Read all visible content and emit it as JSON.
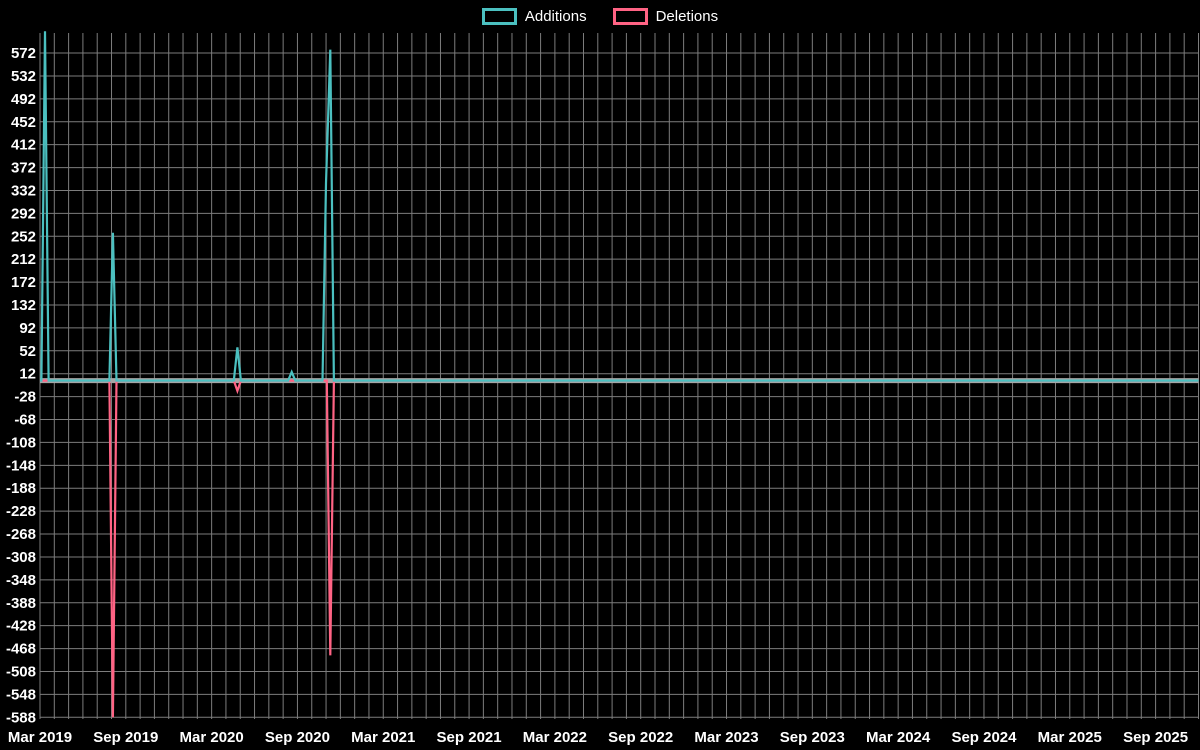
{
  "page": {
    "background": "#000000"
  },
  "legend": {
    "items": [
      {
        "label": "Additions",
        "color": "#4bc0c0"
      },
      {
        "label": "Deletions",
        "color": "#ff6384"
      }
    ]
  },
  "chart_data": {
    "type": "line",
    "legend_position": "top-center",
    "background": "#000000",
    "grid": true,
    "grid_color": "#7d7d7d",
    "zero_line_color": "#a6a6a6",
    "baseline_value": 0,
    "x_axis": {
      "start": "Mar 2019",
      "months_shown": 81,
      "minor_grid": "monthly",
      "tick_interval_months": 6,
      "tick_labels": [
        "Mar 2019",
        "Sep 2019",
        "Mar 2020",
        "Sep 2020",
        "Mar 2021",
        "Sep 2021",
        "Mar 2022",
        "Sep 2022",
        "Mar 2023",
        "Sep 2023",
        "Mar 2024",
        "Sep 2024",
        "Mar 2025",
        "Sep 2025"
      ]
    },
    "y_axis": {
      "ticks": [
        572,
        532,
        492,
        452,
        412,
        372,
        332,
        292,
        252,
        212,
        172,
        132,
        92,
        52,
        12,
        -28,
        -68,
        -108,
        -148,
        -188,
        -228,
        -268,
        -308,
        -348,
        -388,
        -428,
        -468,
        -508,
        -548,
        -588
      ],
      "range": [
        -591,
        607
      ]
    },
    "series": [
      {
        "name": "Additions",
        "color": "#4bc0c0",
        "baseline": 0,
        "spikes": [
          {
            "date": "late Mar 2019",
            "month_index": 0.35,
            "value": 610
          },
          {
            "date": "early Aug 2019",
            "month_index": 5.1,
            "value": 258
          },
          {
            "date": "late Apr 2020",
            "month_index": 13.8,
            "value": 58
          },
          {
            "date": "late Aug 2020",
            "month_index": 17.6,
            "value": 15
          },
          {
            "date": "early Nov 2020",
            "month_index": 20.0,
            "value": 345
          },
          {
            "date": "mid Nov 2020",
            "month_index": 20.3,
            "value": 578
          }
        ]
      },
      {
        "name": "Deletions",
        "color": "#ff6384",
        "baseline": 0,
        "spikes": [
          {
            "date": "early Aug 2019",
            "month_index": 5.1,
            "value": -588
          },
          {
            "date": "late Apr 2020",
            "month_index": 13.8,
            "value": -18
          },
          {
            "date": "mid Nov 2020",
            "month_index": 20.3,
            "value": -480
          }
        ]
      }
    ]
  }
}
